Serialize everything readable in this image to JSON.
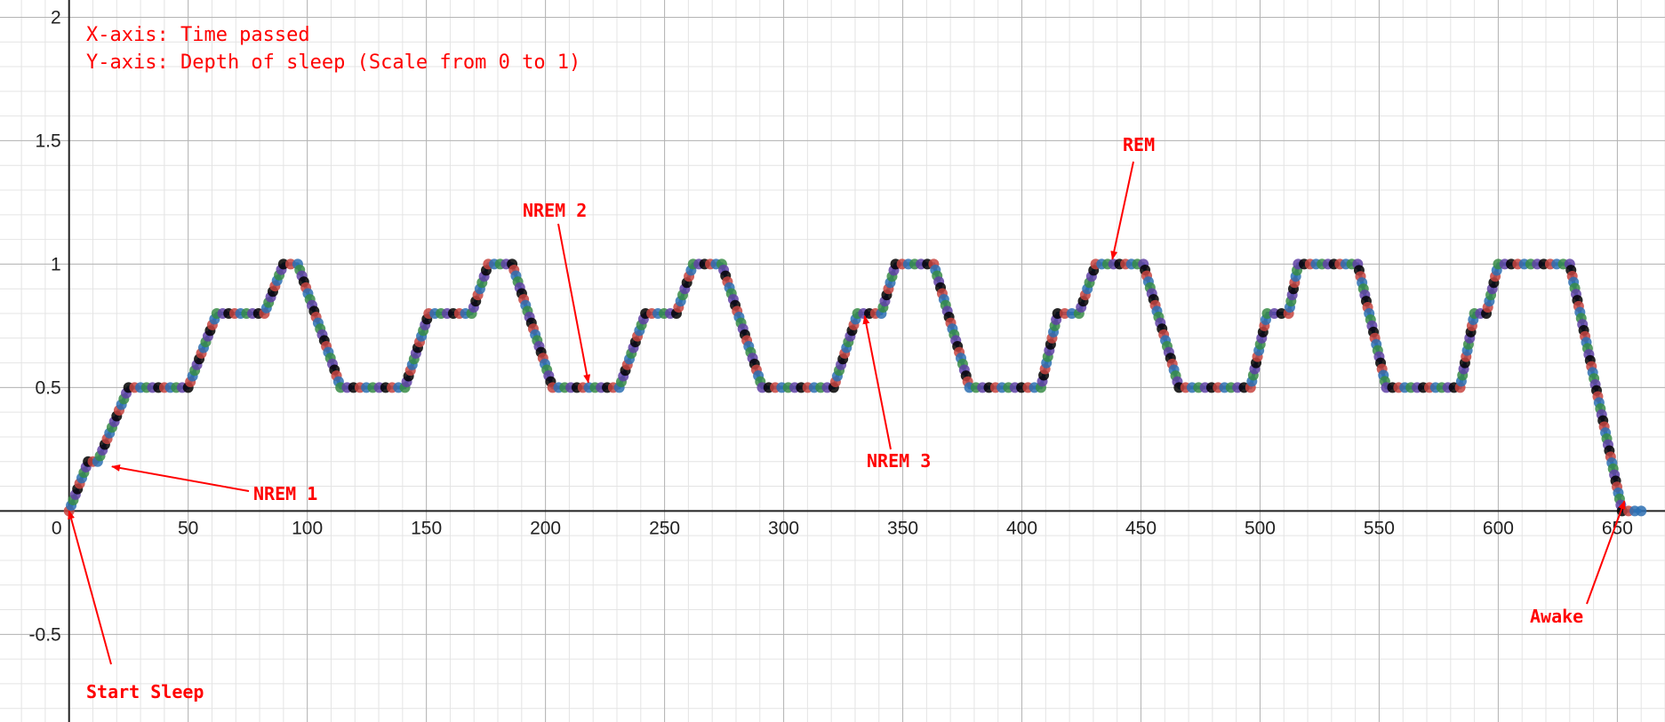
{
  "chart_data": {
    "type": "scatter",
    "title": "",
    "xlabel": "",
    "ylabel": "",
    "xlim": [
      -29,
      670
    ],
    "ylim": [
      -0.855,
      2.07
    ],
    "grid": true,
    "x_ticks": [
      "0",
      "50",
      "100",
      "150",
      "200",
      "250",
      "300",
      "350",
      "400",
      "450",
      "500",
      "550",
      "600",
      "650"
    ],
    "y_ticks": [
      "-0.5",
      "0.5",
      "1",
      "1.5",
      "2"
    ],
    "x_tick_values": [
      0,
      50,
      100,
      150,
      200,
      250,
      300,
      350,
      400,
      450,
      500,
      550,
      600,
      650
    ],
    "y_tick_values": [
      -0.5,
      0.5,
      1,
      1.5,
      2
    ],
    "point_colors": [
      "#c74440",
      "#2d70b3",
      "#388c46",
      "#6042a6",
      "#000000"
    ],
    "curve_color": "#2d70b3",
    "annotation_color": "#ff0000",
    "notes": [
      "X-axis: Time passed",
      "Y-axis: Depth of sleep (Scale from 0 to 1)"
    ],
    "series": [
      {
        "values": [
          [
            0,
            0
          ],
          [
            8,
            0.2
          ],
          [
            12,
            0.2
          ],
          [
            25,
            0.5
          ],
          [
            50,
            0.5
          ],
          [
            62,
            0.8
          ],
          [
            82,
            0.8
          ],
          [
            90,
            1
          ],
          [
            96,
            1
          ],
          [
            114,
            0.5
          ],
          [
            141,
            0.5
          ],
          [
            151,
            0.8
          ],
          [
            169,
            0.8
          ],
          [
            176,
            1
          ],
          [
            186,
            1
          ],
          [
            203,
            0.5
          ],
          [
            231,
            0.5
          ],
          [
            242,
            0.8
          ],
          [
            255,
            0.8
          ],
          [
            262,
            1
          ],
          [
            274,
            1
          ],
          [
            291,
            0.5
          ],
          [
            321,
            0.5
          ],
          [
            331,
            0.8
          ],
          [
            341,
            0.8
          ],
          [
            347,
            1
          ],
          [
            363,
            1
          ],
          [
            378,
            0.5
          ],
          [
            408,
            0.5
          ],
          [
            415,
            0.8
          ],
          [
            424,
            0.8
          ],
          [
            431,
            1
          ],
          [
            451,
            1
          ],
          [
            466,
            0.5
          ],
          [
            496,
            0.5
          ],
          [
            503,
            0.8
          ],
          [
            512,
            0.8
          ],
          [
            516,
            1
          ],
          [
            541,
            1
          ],
          [
            553,
            0.5
          ],
          [
            584,
            0.5
          ],
          [
            590,
            0.8
          ],
          [
            595,
            0.8
          ],
          [
            600,
            1
          ],
          [
            630,
            1
          ],
          [
            652,
            0
          ],
          [
            660,
            0
          ]
        ]
      }
    ],
    "annotations": [
      {
        "label": "Start Sleep",
        "target": [
          0,
          0
        ]
      },
      {
        "label": "NREM 1",
        "target": [
          18,
          0.18
        ]
      },
      {
        "label": "NREM 2",
        "target": [
          218,
          0.52
        ]
      },
      {
        "label": "NREM 3",
        "target": [
          334,
          0.79
        ]
      },
      {
        "label": "REM",
        "target": [
          438,
          1.02
        ]
      },
      {
        "label": "Awake",
        "target": [
          653,
          0.04
        ]
      }
    ]
  }
}
